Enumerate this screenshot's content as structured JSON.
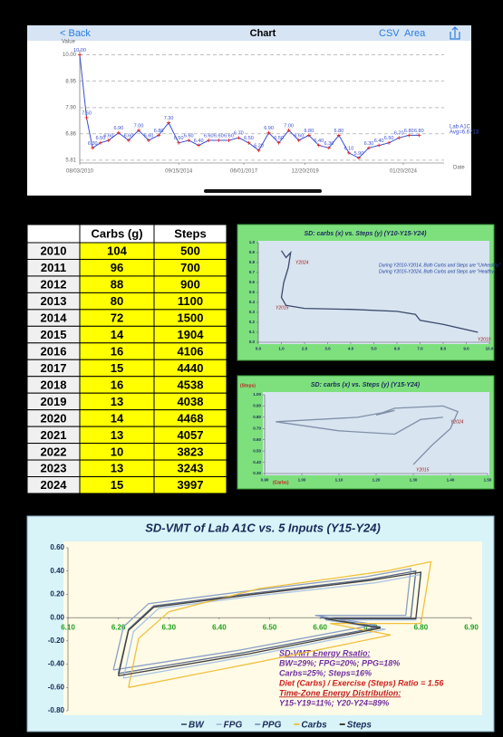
{
  "nav": {
    "back": "< Back",
    "title": "Chart",
    "csv": "CSV",
    "area": "Area"
  },
  "table": {
    "header": [
      "Carbs (g)",
      "Steps"
    ],
    "rows": [
      [
        "2010",
        104,
        500
      ],
      [
        "2011",
        96,
        700
      ],
      [
        "2012",
        88,
        900
      ],
      [
        "2013",
        80,
        1100
      ],
      [
        "2014",
        72,
        1500
      ],
      [
        "2015",
        14,
        1904
      ],
      [
        "2016",
        16,
        4106
      ],
      [
        "2017",
        15,
        4440
      ],
      [
        "2018",
        16,
        4538
      ],
      [
        "2019",
        13,
        4038
      ],
      [
        "2020",
        14,
        4468
      ],
      [
        "2021",
        13,
        4057
      ],
      [
        "2022",
        10,
        3823
      ],
      [
        "2023",
        13,
        3243
      ],
      [
        "2024",
        15,
        3997
      ]
    ]
  },
  "chart_data": [
    {
      "type": "line",
      "y_label": "Value",
      "x_label": "Date",
      "annotations": [
        "Avg=6.6713"
      ],
      "grid": true,
      "markers": true,
      "x": [
        "08/03/2010",
        "11/15/2010",
        "02/15/2011",
        "06/15/2011",
        "10/15/2011",
        "03/15/2012",
        "08/15/2012",
        "01/15/2013",
        "06/15/2013",
        "11/15/2013",
        "04/15/2014",
        "09/15/2014",
        "02/15/2015",
        "07/15/2015",
        "12/15/2015",
        "05/15/2016",
        "10/15/2016",
        "03/15/2017",
        "08/15/2017",
        "01/15/2018",
        "06/15/2018",
        "11/15/2018",
        "04/15/2019",
        "09/15/2019",
        "02/15/2020",
        "07/15/2020",
        "12/15/2020",
        "05/15/2021",
        "10/15/2021",
        "03/15/2022",
        "08/15/2022",
        "01/15/2023",
        "06/15/2023",
        "11/15/2023",
        "04/15/2024",
        "09/15/2024"
      ],
      "series": [
        {
          "name": "Lab A1C",
          "color": "#3a4fd0",
          "marker_color": "#e02020",
          "values": [
            10.0,
            7.5,
            6.3,
            6.5,
            6.6,
            6.9,
            6.6,
            7.0,
            6.6,
            6.8,
            7.3,
            6.5,
            6.6,
            6.4,
            6.6,
            6.6,
            6.6,
            6.7,
            6.5,
            6.2,
            6.9,
            6.5,
            7.0,
            6.6,
            6.8,
            6.4,
            6.3,
            6.8,
            6.1,
            5.9,
            6.3,
            6.4,
            6.5,
            6.7,
            6.8,
            6.8
          ],
          "value_labels": [
            "10.00",
            "7.50",
            "6.30",
            "6.50",
            "6.60",
            "6.90",
            "6.60",
            "7.00",
            "6.60",
            "6.80",
            "7.30",
            "6.50",
            "6.60",
            "6.40",
            "6.60",
            "6.60",
            "6.60",
            "6.70",
            "6.50",
            "6.20",
            "6.90",
            "6.50",
            "7.00",
            "6.60",
            "6.80",
            "6.40",
            "6.30",
            "6.80",
            "6.10",
            "5.90",
            "6.30",
            "6.40",
            "6.50",
            "6.70",
            "6.80",
            "6.80"
          ]
        }
      ],
      "xlim": [
        "08/03/2010",
        "10/01/2025"
      ],
      "xticks": [
        "08/03/2010",
        "09/15/2014",
        "06/01/2017",
        "12/20/2019",
        "01/20/2024"
      ],
      "ylim": [
        5.7,
        10.2
      ],
      "yticks": [
        {
          "value": 10,
          "label": "10.00"
        },
        8.95,
        {
          "value": 7.9,
          "label": "7.90"
        },
        6.86,
        5.81
      ]
    },
    {
      "type": "line",
      "title": "SD:  carbs (x) vs. Steps (y)  (Y10-Y15-Y24)",
      "grid": false,
      "annotations": [
        "Y2024",
        "Y2015",
        "Y2010",
        "During Y2010-Y2014, Both Carbs and Steps are \"Unhealthy\"",
        "During Y2015-Y2024, Both Carbs and Steps are \"Healthy\""
      ],
      "series": [
        {
          "name": "SD",
          "color": "#3b4a6b",
          "x": [
            1.0,
            1.2,
            1.4,
            1.3,
            1.1,
            1.0,
            1.2,
            2.0,
            4.0,
            6.0,
            6.8,
            7.0,
            8.0,
            9.5
          ],
          "values": [
            0.92,
            0.85,
            0.9,
            0.75,
            0.6,
            0.45,
            0.37,
            0.34,
            0.33,
            0.31,
            0.28,
            0.22,
            0.18,
            0.1
          ]
        }
      ],
      "xlim": [
        0,
        10
      ],
      "xticks": [
        {
          "value": 0,
          "label": "0.0"
        },
        {
          "value": 1,
          "label": "1.0"
        },
        {
          "value": 2,
          "label": "2.0"
        },
        {
          "value": 3,
          "label": "3.0"
        },
        {
          "value": 4,
          "label": "4.0"
        },
        {
          "value": 5,
          "label": "5.0"
        },
        {
          "value": 6,
          "label": "6.0"
        },
        {
          "value": 7,
          "label": "7.0"
        },
        {
          "value": 8,
          "label": "8.0"
        },
        {
          "value": 9,
          "label": "9.0"
        },
        {
          "value": 10,
          "label": "10.0"
        }
      ],
      "ylim": [
        0,
        1
      ],
      "yticks": [
        {
          "value": 0,
          "label": "0.0"
        },
        0.1,
        0.2,
        0.3,
        0.4,
        0.5,
        0.6,
        0.7,
        0.8,
        0.9,
        {
          "value": 1,
          "label": "1.0"
        }
      ]
    },
    {
      "type": "line",
      "title": "SD: carbs (x) vs. Steps (y)  (Y15-Y24)",
      "y_label": "(Steps)",
      "x_label": "(Carbs)",
      "grid": false,
      "annotations": [
        "Y2024",
        "Y2015"
      ],
      "series": [
        {
          "name": "SD",
          "color": "#8090a8",
          "x": [
            1.3,
            1.35,
            1.4,
            1.42,
            1.38,
            1.25,
            1.2,
            1.25,
            1.15,
            0.93,
            1.1,
            1.25,
            1.32,
            1.38
          ],
          "values": [
            0.38,
            0.55,
            0.7,
            0.85,
            0.9,
            0.88,
            0.82,
            0.86,
            0.8,
            0.76,
            0.68,
            0.65,
            0.78,
            0.8
          ]
        }
      ],
      "xlim": [
        0.9,
        1.5
      ],
      "xticks": [
        {
          "value": 0.9,
          "label": "0.90"
        },
        {
          "value": 1,
          "label": "1.00"
        },
        {
          "value": 1.1,
          "label": "1.10"
        },
        {
          "value": 1.2,
          "label": "1.20"
        },
        {
          "value": 1.3,
          "label": "1.30"
        },
        {
          "value": 1.4,
          "label": "1.40"
        },
        {
          "value": 1.5,
          "label": "1.50"
        }
      ],
      "ylim": [
        0.3,
        1.0
      ],
      "yticks": [
        {
          "value": 0.3,
          "label": "0.30"
        },
        {
          "value": 0.4,
          "label": "0.40"
        },
        {
          "value": 0.5,
          "label": "0.50"
        },
        {
          "value": 0.6,
          "label": "0.60"
        },
        {
          "value": 0.7,
          "label": "0.70"
        },
        {
          "value": 0.8,
          "label": "0.80"
        },
        {
          "value": 0.9,
          "label": "0.90"
        },
        {
          "value": 1,
          "label": "1.00"
        }
      ]
    },
    {
      "type": "line",
      "title": "SD-VMT of Lab A1C vs. 5 Inputs  (Y15-Y24)",
      "grid": false,
      "x_axis_position": "zero",
      "legend": "bottom",
      "annotations": [
        "SD-VMT Energy Rsatio:",
        "BW=29%; FPG=20%; PPG=18%",
        "Carbs=25%; Steps=16%",
        "Diet (Carbs) / Exercise (Steps) Ratio = 1.56",
        "Time-Zone Energy Distribution:",
        "Y15-Y19=11%;  Y20-Y24=89%"
      ],
      "series": [
        {
          "name": "BW",
          "color": "#5a6b8c",
          "x": [
            6.2,
            6.22,
            6.27,
            6.45,
            6.7,
            6.79,
            6.78,
            6.6,
            6.72,
            6.45,
            6.2
          ],
          "values": [
            -0.48,
            -0.1,
            0.1,
            0.2,
            0.33,
            0.4,
            0.0,
            0.0,
            -0.08,
            -0.3,
            -0.48
          ]
        },
        {
          "name": "FPG",
          "color": "#a8c4e4",
          "x": [
            6.21,
            6.23,
            6.28,
            6.46,
            6.71,
            6.8,
            6.79,
            6.61,
            6.73,
            6.46,
            6.21
          ],
          "values": [
            -0.52,
            -0.12,
            0.08,
            0.18,
            0.3,
            0.37,
            -0.02,
            -0.02,
            -0.1,
            -0.33,
            -0.52
          ]
        },
        {
          "name": "PPG",
          "color": "#8aa0c8",
          "x": [
            6.19,
            6.21,
            6.26,
            6.44,
            6.69,
            6.78,
            6.77,
            6.59,
            6.71,
            6.44,
            6.19
          ],
          "values": [
            -0.45,
            -0.08,
            0.12,
            0.22,
            0.35,
            0.42,
            0.02,
            0.02,
            -0.06,
            -0.28,
            -0.45
          ]
        },
        {
          "name": "Carbs",
          "color": "#f0c040",
          "x": [
            6.22,
            6.24,
            6.3,
            6.48,
            6.73,
            6.82,
            6.8,
            6.62,
            6.74,
            6.48,
            6.22
          ],
          "values": [
            -0.6,
            -0.18,
            0.05,
            0.25,
            0.4,
            0.48,
            -0.05,
            -0.05,
            -0.15,
            -0.38,
            -0.6
          ]
        },
        {
          "name": "Steps",
          "color": "#404040",
          "x": [
            6.2,
            6.22,
            6.27,
            6.45,
            6.7,
            6.8,
            6.79,
            6.61,
            6.72,
            6.46,
            6.2
          ],
          "values": [
            -0.5,
            -0.11,
            0.09,
            0.19,
            0.32,
            0.39,
            -0.01,
            -0.01,
            -0.09,
            -0.31,
            -0.5
          ]
        }
      ],
      "xlim": [
        6.1,
        6.9
      ],
      "xticks": [
        {
          "value": 6.1,
          "label": "6.10"
        },
        {
          "value": 6.2,
          "label": "6.20"
        },
        {
          "value": 6.3,
          "label": "6.30"
        },
        {
          "value": 6.4,
          "label": "6.40"
        },
        {
          "value": 6.5,
          "label": "6.50"
        },
        {
          "value": 6.6,
          "label": "6.60"
        },
        {
          "value": 6.7,
          "label": "6.70"
        },
        {
          "value": 6.8,
          "label": "6.80"
        },
        {
          "value": 6.9,
          "label": "6.90"
        }
      ],
      "ylim": [
        -0.8,
        0.6
      ],
      "yticks": [
        {
          "value": 0.6,
          "label": "0.60"
        },
        {
          "value": 0.4,
          "label": "0.40"
        },
        {
          "value": 0.2,
          "label": "0.20"
        },
        {
          "value": 0,
          "label": "0.00"
        },
        {
          "value": -0.2,
          "label": "-0.20"
        },
        {
          "value": -0.4,
          "label": "-0.40"
        },
        {
          "value": -0.6,
          "label": "-0.60"
        },
        {
          "value": -0.8,
          "label": "-0.80"
        }
      ]
    }
  ]
}
